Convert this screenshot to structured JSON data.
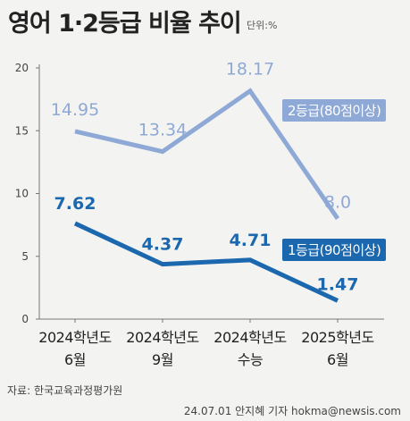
{
  "title": "영어 1·2등급 비율 추이",
  "unit_label": "단위:%",
  "source": "자료: 한국교육과정평가원",
  "credit": "24.07.01 안지혜 기자 hokma@newsis.com",
  "chart_data": {
    "type": "line",
    "categories": [
      [
        "2024학년도",
        "6월"
      ],
      [
        "2024학년도",
        "9월"
      ],
      [
        "2024학년도",
        "수능"
      ],
      [
        "2025학년도",
        "6월"
      ]
    ],
    "ylim": [
      0,
      20
    ],
    "yticks": [
      0,
      5,
      10,
      15,
      20
    ],
    "grid": false,
    "series": [
      {
        "name": "2등급(80점이상)",
        "values": [
          14.95,
          13.34,
          18.17,
          8.0
        ],
        "labels": [
          "14.95",
          "13.34",
          "18.17",
          "8.0"
        ],
        "color": "#8fa9d6"
      },
      {
        "name": "1등급(90점이상)",
        "values": [
          7.62,
          4.37,
          4.71,
          1.47
        ],
        "labels": [
          "7.62",
          "4.37",
          "4.71",
          "1.47"
        ],
        "color": "#1b68ae"
      }
    ]
  }
}
